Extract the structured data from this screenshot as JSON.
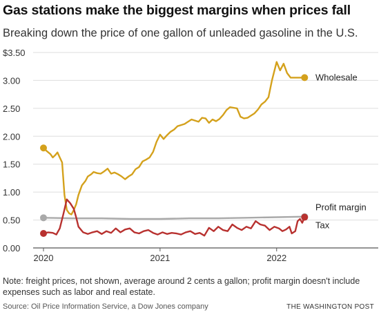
{
  "title": "Gas stations make the biggest margins when prices fall",
  "subtitle": "Breaking down the price of one gallon of unleaded gasoline in the U.S.",
  "note": "Note: freight prices, not shown, average around 2 cents a gallon; profit margin doesn't include expenses such as labor and real estate.",
  "source": "Source: Oil Price Information Service, a Dow Jones company",
  "credit": "THE WASHINGTON POST",
  "chart_data": {
    "type": "line",
    "title": "Gas stations make the biggest margins when prices fall",
    "subtitle": "Breaking down the price of one gallon of unleaded gasoline in the U.S.",
    "xlabel": "",
    "ylabel": "",
    "x_range": [
      2020.0,
      2022.25
    ],
    "ylim": [
      0,
      3.5
    ],
    "yticks": [
      0,
      0.5,
      1.0,
      1.5,
      2.0,
      2.5,
      3.0,
      3.5
    ],
    "ytick_labels": [
      "0.00",
      "0.50",
      "1.00",
      "1.50",
      "2.00",
      "2.50",
      "3.00",
      "$3.50"
    ],
    "xticks": [
      2020,
      2021,
      2022
    ],
    "xtick_labels": [
      "2020",
      "2021",
      "2022"
    ],
    "grid": "horizontal",
    "legend": "direct labels at line ends",
    "colors": {
      "wholesale": "#d4a11c",
      "profit_margin": "#a9a9a9",
      "tax": "#b8312f",
      "grid": "#dddddd",
      "axis": "#555555"
    },
    "series": [
      {
        "name": "Wholesale",
        "color": "#d4a11c",
        "x": [
          2020.0,
          2020.03,
          2020.06,
          2020.08,
          2020.1,
          2020.12,
          2020.14,
          2020.16,
          2020.18,
          2020.2,
          2020.22,
          2020.24,
          2020.26,
          2020.28,
          2020.3,
          2020.33,
          2020.36,
          2020.38,
          2020.41,
          2020.43,
          2020.46,
          2020.49,
          2020.52,
          2020.55,
          2020.58,
          2020.61,
          2020.64,
          2020.67,
          2020.7,
          2020.73,
          2020.76,
          2020.79,
          2020.82,
          2020.85,
          2020.88,
          2020.91,
          2020.94,
          2020.97,
          2021.0,
          2021.03,
          2021.06,
          2021.09,
          2021.12,
          2021.15,
          2021.18,
          2021.21,
          2021.24,
          2021.27,
          2021.3,
          2021.33,
          2021.36,
          2021.39,
          2021.42,
          2021.45,
          2021.48,
          2021.51,
          2021.54,
          2021.57,
          2021.6,
          2021.63,
          2021.66,
          2021.69,
          2021.72,
          2021.75,
          2021.78,
          2021.81,
          2021.84,
          2021.87,
          2021.9,
          2021.93,
          2021.96,
          2022.0,
          2022.03,
          2022.06,
          2022.09,
          2022.12,
          2022.14,
          2022.16,
          2022.18,
          2022.2,
          2022.22,
          2022.24
        ],
        "values": [
          1.79,
          1.73,
          1.68,
          1.62,
          1.66,
          1.71,
          1.62,
          1.53,
          0.95,
          0.68,
          0.62,
          0.6,
          0.68,
          0.78,
          0.95,
          1.12,
          1.2,
          1.28,
          1.32,
          1.36,
          1.34,
          1.33,
          1.37,
          1.42,
          1.33,
          1.35,
          1.32,
          1.28,
          1.23,
          1.28,
          1.32,
          1.41,
          1.45,
          1.55,
          1.58,
          1.62,
          1.72,
          1.9,
          2.03,
          1.95,
          2.02,
          2.08,
          2.12,
          2.18,
          2.2,
          2.22,
          2.26,
          2.3,
          2.28,
          2.26,
          2.33,
          2.32,
          2.24,
          2.3,
          2.27,
          2.31,
          2.38,
          2.47,
          2.52,
          2.51,
          2.5,
          2.35,
          2.32,
          2.33,
          2.37,
          2.41,
          2.48,
          2.57,
          2.62,
          2.7,
          3.0,
          3.33,
          3.18,
          3.3,
          3.13,
          3.05,
          3.05,
          3.05,
          3.05,
          3.05,
          3.05,
          3.05
        ]
      },
      {
        "name": "Profit margin",
        "color": "#a9a9a9",
        "x": [
          2020.0,
          2020.25,
          2020.5,
          2020.75,
          2021.0,
          2021.25,
          2021.5,
          2021.75,
          2022.0,
          2022.24
        ],
        "values": [
          0.54,
          0.53,
          0.53,
          0.52,
          0.52,
          0.53,
          0.53,
          0.54,
          0.55,
          0.56
        ]
      },
      {
        "name": "Tax",
        "color": "#b8312f",
        "x": [
          2020.0,
          2020.04,
          2020.08,
          2020.11,
          2020.14,
          2020.17,
          2020.2,
          2020.23,
          2020.26,
          2020.28,
          2020.3,
          2020.34,
          2020.38,
          2020.42,
          2020.46,
          2020.5,
          2020.54,
          2020.58,
          2020.62,
          2020.66,
          2020.7,
          2020.74,
          2020.78,
          2020.82,
          2020.86,
          2020.9,
          2020.94,
          2020.98,
          2021.02,
          2021.06,
          2021.1,
          2021.14,
          2021.18,
          2021.22,
          2021.26,
          2021.3,
          2021.34,
          2021.38,
          2021.42,
          2021.46,
          2021.5,
          2021.54,
          2021.58,
          2021.62,
          2021.66,
          2021.7,
          2021.74,
          2021.78,
          2021.82,
          2021.86,
          2021.9,
          2021.94,
          2021.98,
          2022.02,
          2022.05,
          2022.08,
          2022.11,
          2022.13,
          2022.16,
          2022.18,
          2022.2,
          2022.22,
          2022.24
        ],
        "values": [
          0.26,
          0.28,
          0.27,
          0.24,
          0.35,
          0.6,
          0.87,
          0.8,
          0.7,
          0.55,
          0.38,
          0.28,
          0.25,
          0.28,
          0.3,
          0.25,
          0.3,
          0.27,
          0.35,
          0.28,
          0.33,
          0.35,
          0.28,
          0.26,
          0.3,
          0.32,
          0.27,
          0.24,
          0.28,
          0.25,
          0.27,
          0.26,
          0.24,
          0.28,
          0.3,
          0.25,
          0.27,
          0.22,
          0.36,
          0.3,
          0.38,
          0.32,
          0.3,
          0.42,
          0.36,
          0.32,
          0.38,
          0.35,
          0.48,
          0.42,
          0.4,
          0.32,
          0.38,
          0.35,
          0.3,
          0.33,
          0.38,
          0.26,
          0.3,
          0.48,
          0.52,
          0.45,
          0.55
        ]
      }
    ]
  }
}
